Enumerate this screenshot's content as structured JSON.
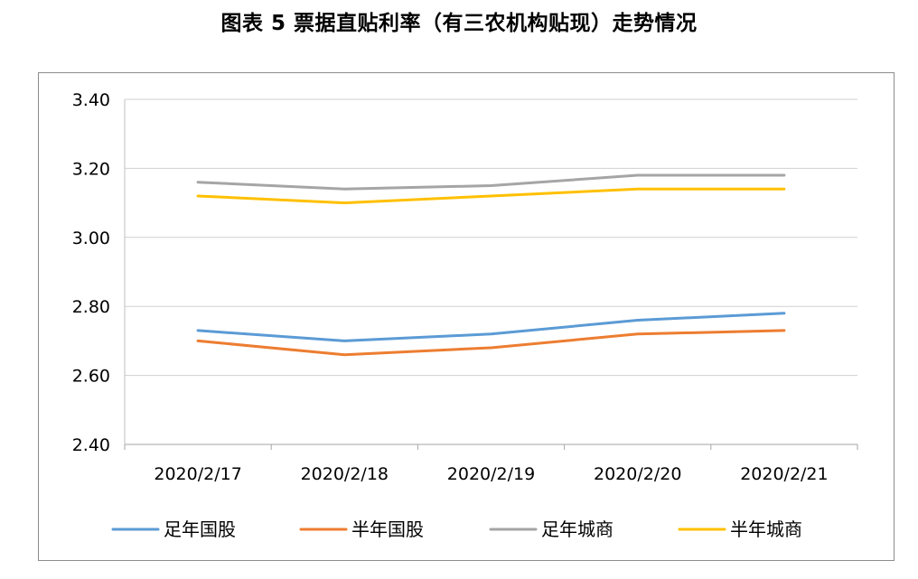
{
  "title": "图表 5  票据直贴利率（有三农机构贴现）走势情况",
  "chart_data": {
    "type": "line",
    "title": "图表 5  票据直贴利率（有三农机构贴现）走势情况",
    "xlabel": "",
    "ylabel": "",
    "categories": [
      "2020/2/17",
      "2020/2/18",
      "2020/2/19",
      "2020/2/20",
      "2020/2/21"
    ],
    "ylim": [
      2.4,
      3.4
    ],
    "yticks": [
      "2.40",
      "2.60",
      "2.80",
      "3.00",
      "3.20",
      "3.40"
    ],
    "grid": true,
    "legend_position": "bottom",
    "series": [
      {
        "name": "足年国股",
        "color": "#5B9BD5",
        "values": [
          2.73,
          2.7,
          2.72,
          2.76,
          2.78
        ]
      },
      {
        "name": "半年国股",
        "color": "#ED7D31",
        "values": [
          2.7,
          2.66,
          2.68,
          2.72,
          2.73
        ]
      },
      {
        "name": "足年城商",
        "color": "#A5A5A5",
        "values": [
          3.16,
          3.14,
          3.15,
          3.18,
          3.18
        ]
      },
      {
        "name": "半年城商",
        "color": "#FFC000",
        "values": [
          3.12,
          3.1,
          3.12,
          3.14,
          3.14
        ]
      }
    ]
  }
}
